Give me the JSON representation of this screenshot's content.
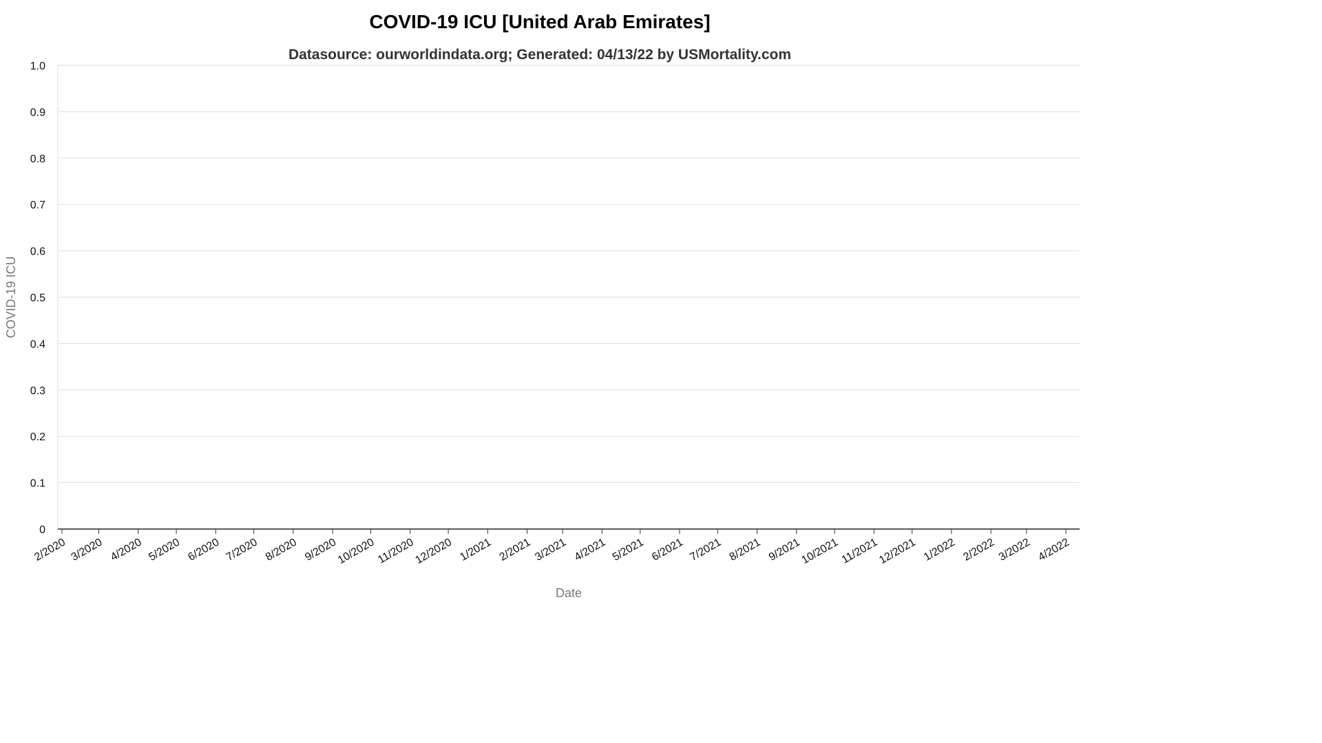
{
  "chart_data": {
    "type": "line",
    "title": "COVID-19 ICU [United Arab Emirates]",
    "subtitle": "Datasource: ourworldindata.org; Generated: 04/13/22 by USMortality.com",
    "xlabel": "Date",
    "ylabel": "COVID-19 ICU",
    "ylim": [
      0,
      1
    ],
    "yticks": [
      "0",
      "0.1",
      "0.2",
      "0.3",
      "0.4",
      "0.5",
      "0.6",
      "0.7",
      "0.8",
      "0.9",
      "1.0"
    ],
    "xticks": [
      "2/2020",
      "3/2020",
      "4/2020",
      "5/2020",
      "6/2020",
      "7/2020",
      "8/2020",
      "9/2020",
      "10/2020",
      "11/2020",
      "12/2020",
      "1/2021",
      "2/2021",
      "3/2021",
      "4/2021",
      "5/2021",
      "6/2021",
      "7/2021",
      "8/2021",
      "9/2021",
      "10/2021",
      "11/2021",
      "12/2021",
      "1/2022",
      "2/2022",
      "3/2022",
      "4/2022"
    ],
    "grid": true,
    "legend": "none",
    "series": []
  }
}
